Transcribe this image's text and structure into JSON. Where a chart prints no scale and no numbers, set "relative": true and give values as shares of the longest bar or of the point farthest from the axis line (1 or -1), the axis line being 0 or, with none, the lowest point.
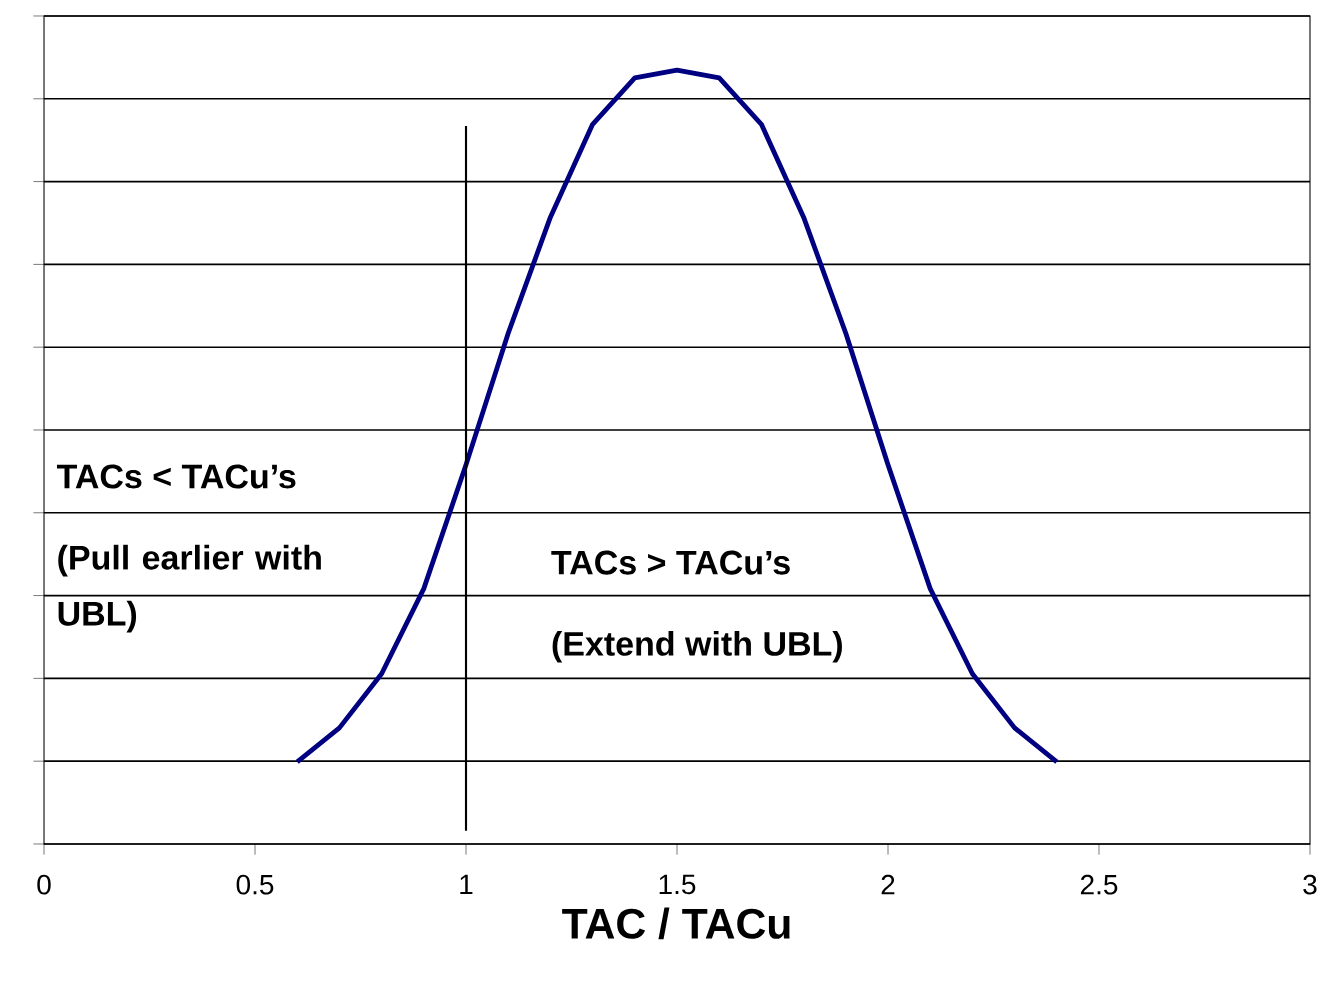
{
  "chart_data": {
    "type": "line",
    "relative": true,
    "xlabel": "TAC / TACu",
    "x": [
      0.6,
      0.7,
      0.8,
      0.9,
      1.0,
      1.1,
      1.2,
      1.3,
      1.4,
      1.5,
      1.6,
      1.7,
      1.8,
      1.9,
      2.0,
      2.1,
      2.2,
      2.3,
      2.4
    ],
    "series": [
      {
        "color": "#000080",
        "values": [
          0.106,
          0.15,
          0.22,
          0.33,
          0.49,
          0.66,
          0.81,
          0.93,
          0.99,
          1.0,
          0.99,
          0.93,
          0.81,
          0.66,
          0.49,
          0.33,
          0.22,
          0.15,
          0.106
        ]
      }
    ],
    "xlim": [
      0,
      3
    ],
    "xticks": [
      0,
      0.5,
      1,
      1.5,
      2,
      2.5,
      3
    ],
    "ref_lines": [
      {
        "axis": "x",
        "value": 1,
        "color": "#000000"
      }
    ],
    "annotations": [
      "TACs < TACu’s",
      "(Pull earlier with UBL)",
      "TACs > TACu’s",
      "(Extend with UBL)"
    ],
    "grid": "y",
    "tick_labels": "x",
    "marker": "none",
    "line_style": "solid"
  }
}
